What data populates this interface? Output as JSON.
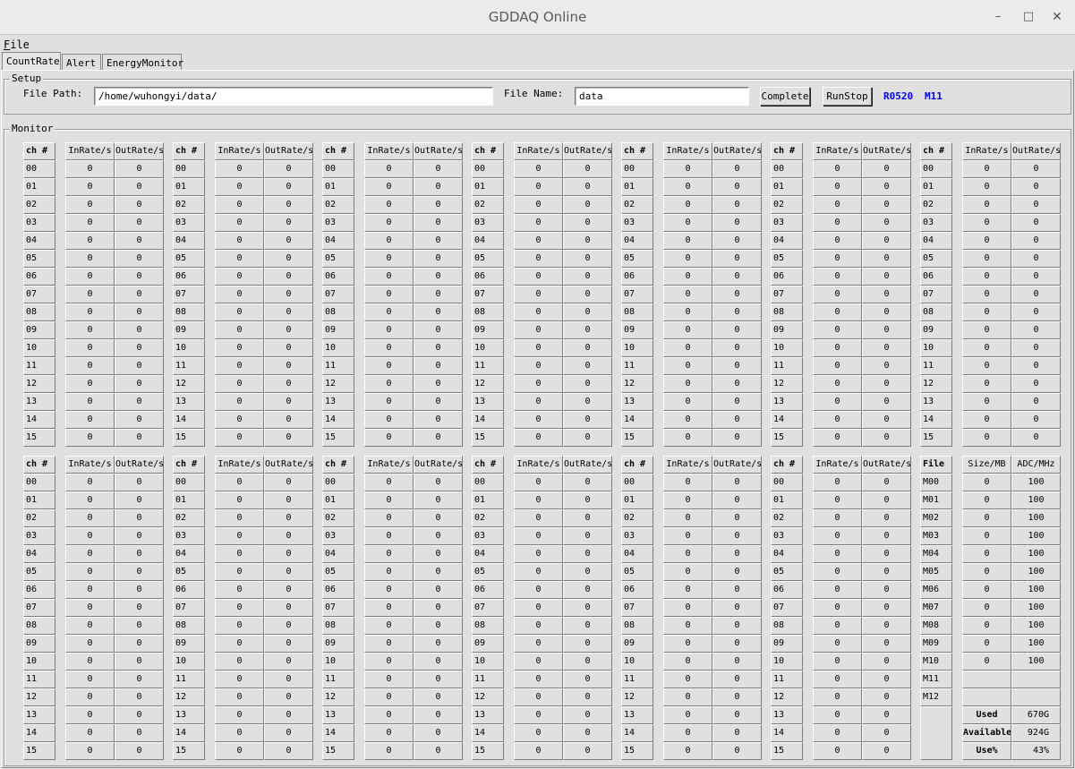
{
  "window": {
    "title": "GDDAQ Online"
  },
  "menu": {
    "file_first": "F",
    "file_rest": "ile"
  },
  "tabs": [
    "CountRate",
    "Alert",
    "EnergyMonitor"
  ],
  "setup": {
    "group_label": "Setup",
    "file_path_label": "File Path:",
    "file_path_value": "/home/wuhongyi/data/",
    "file_name_label": "File Name:",
    "file_name_value": "data",
    "complete_button": "Complete",
    "runstop_button": "RunStop",
    "run_number": "R0520",
    "module": "M11"
  },
  "monitor": {
    "group_label": "Monitor",
    "headers": {
      "ch": "ch #",
      "inrate": "InRate/s",
      "outrate": "OutRate/s"
    },
    "channels": [
      "00",
      "01",
      "02",
      "03",
      "04",
      "05",
      "06",
      "07",
      "08",
      "09",
      "10",
      "11",
      "12",
      "13",
      "14",
      "15"
    ],
    "top_modules": [
      {
        "in": [
          0,
          0,
          0,
          0,
          0,
          0,
          0,
          0,
          0,
          0,
          0,
          0,
          0,
          0,
          0,
          0
        ],
        "out": [
          0,
          0,
          0,
          0,
          0,
          0,
          0,
          0,
          0,
          0,
          0,
          0,
          0,
          0,
          0,
          0
        ]
      },
      {
        "in": [
          0,
          0,
          0,
          0,
          0,
          0,
          0,
          0,
          0,
          0,
          0,
          0,
          0,
          0,
          0,
          0
        ],
        "out": [
          0,
          0,
          0,
          0,
          0,
          0,
          0,
          0,
          0,
          0,
          0,
          0,
          0,
          0,
          0,
          0
        ]
      },
      {
        "in": [
          0,
          0,
          0,
          0,
          0,
          0,
          0,
          0,
          0,
          0,
          0,
          0,
          0,
          0,
          0,
          0
        ],
        "out": [
          0,
          0,
          0,
          0,
          0,
          0,
          0,
          0,
          0,
          0,
          0,
          0,
          0,
          0,
          0,
          0
        ]
      },
      {
        "in": [
          0,
          0,
          0,
          0,
          0,
          0,
          0,
          0,
          0,
          0,
          0,
          0,
          0,
          0,
          0,
          0
        ],
        "out": [
          0,
          0,
          0,
          0,
          0,
          0,
          0,
          0,
          0,
          0,
          0,
          0,
          0,
          0,
          0,
          0
        ]
      },
      {
        "in": [
          0,
          0,
          0,
          0,
          0,
          0,
          0,
          0,
          0,
          0,
          0,
          0,
          0,
          0,
          0,
          0
        ],
        "out": [
          0,
          0,
          0,
          0,
          0,
          0,
          0,
          0,
          0,
          0,
          0,
          0,
          0,
          0,
          0,
          0
        ]
      },
      {
        "in": [
          0,
          0,
          0,
          0,
          0,
          0,
          0,
          0,
          0,
          0,
          0,
          0,
          0,
          0,
          0,
          0
        ],
        "out": [
          0,
          0,
          0,
          0,
          0,
          0,
          0,
          0,
          0,
          0,
          0,
          0,
          0,
          0,
          0,
          0
        ]
      },
      {
        "in": [
          0,
          0,
          0,
          0,
          0,
          0,
          0,
          0,
          0,
          0,
          0,
          0,
          0,
          0,
          0,
          0
        ],
        "out": [
          0,
          0,
          0,
          0,
          0,
          0,
          0,
          0,
          0,
          0,
          0,
          0,
          0,
          0,
          0,
          0
        ]
      }
    ],
    "bottom_modules": [
      {
        "in": [
          0,
          0,
          0,
          0,
          0,
          0,
          0,
          0,
          0,
          0,
          0,
          0,
          0,
          0,
          0,
          0
        ],
        "out": [
          0,
          0,
          0,
          0,
          0,
          0,
          0,
          0,
          0,
          0,
          0,
          0,
          0,
          0,
          0,
          0
        ]
      },
      {
        "in": [
          0,
          0,
          0,
          0,
          0,
          0,
          0,
          0,
          0,
          0,
          0,
          0,
          0,
          0,
          0,
          0
        ],
        "out": [
          0,
          0,
          0,
          0,
          0,
          0,
          0,
          0,
          0,
          0,
          0,
          0,
          0,
          0,
          0,
          0
        ]
      },
      {
        "in": [
          0,
          0,
          0,
          0,
          0,
          0,
          0,
          0,
          0,
          0,
          0,
          0,
          0,
          0,
          0,
          0
        ],
        "out": [
          0,
          0,
          0,
          0,
          0,
          0,
          0,
          0,
          0,
          0,
          0,
          0,
          0,
          0,
          0,
          0
        ]
      },
      {
        "in": [
          0,
          0,
          0,
          0,
          0,
          0,
          0,
          0,
          0,
          0,
          0,
          0,
          0,
          0,
          0,
          0
        ],
        "out": [
          0,
          0,
          0,
          0,
          0,
          0,
          0,
          0,
          0,
          0,
          0,
          0,
          0,
          0,
          0,
          0
        ]
      },
      {
        "in": [
          0,
          0,
          0,
          0,
          0,
          0,
          0,
          0,
          0,
          0,
          0,
          0,
          0,
          0,
          0,
          0
        ],
        "out": [
          0,
          0,
          0,
          0,
          0,
          0,
          0,
          0,
          0,
          0,
          0,
          0,
          0,
          0,
          0,
          0
        ]
      },
      {
        "in": [
          0,
          0,
          0,
          0,
          0,
          0,
          0,
          0,
          0,
          0,
          0,
          0,
          0,
          0,
          0,
          0
        ],
        "out": [
          0,
          0,
          0,
          0,
          0,
          0,
          0,
          0,
          0,
          0,
          0,
          0,
          0,
          0,
          0,
          0
        ]
      }
    ],
    "file_panel": {
      "headers": {
        "file": "File",
        "size": "Size/MB",
        "adc": "ADC/MHz"
      },
      "modules": [
        "M00",
        "M01",
        "M02",
        "M03",
        "M04",
        "M05",
        "M06",
        "M07",
        "M08",
        "M09",
        "M10",
        "M11",
        "M12"
      ],
      "sizes": [
        0,
        0,
        0,
        0,
        0,
        0,
        0,
        0,
        0,
        0,
        0,
        "",
        ""
      ],
      "adc": [
        100,
        100,
        100,
        100,
        100,
        100,
        100,
        100,
        100,
        100,
        100,
        "",
        ""
      ],
      "disk": [
        {
          "label": "Used",
          "value": "670G"
        },
        {
          "label": "Available",
          "value": "924G"
        },
        {
          "label": "Use%",
          "value": "43%"
        }
      ]
    }
  }
}
